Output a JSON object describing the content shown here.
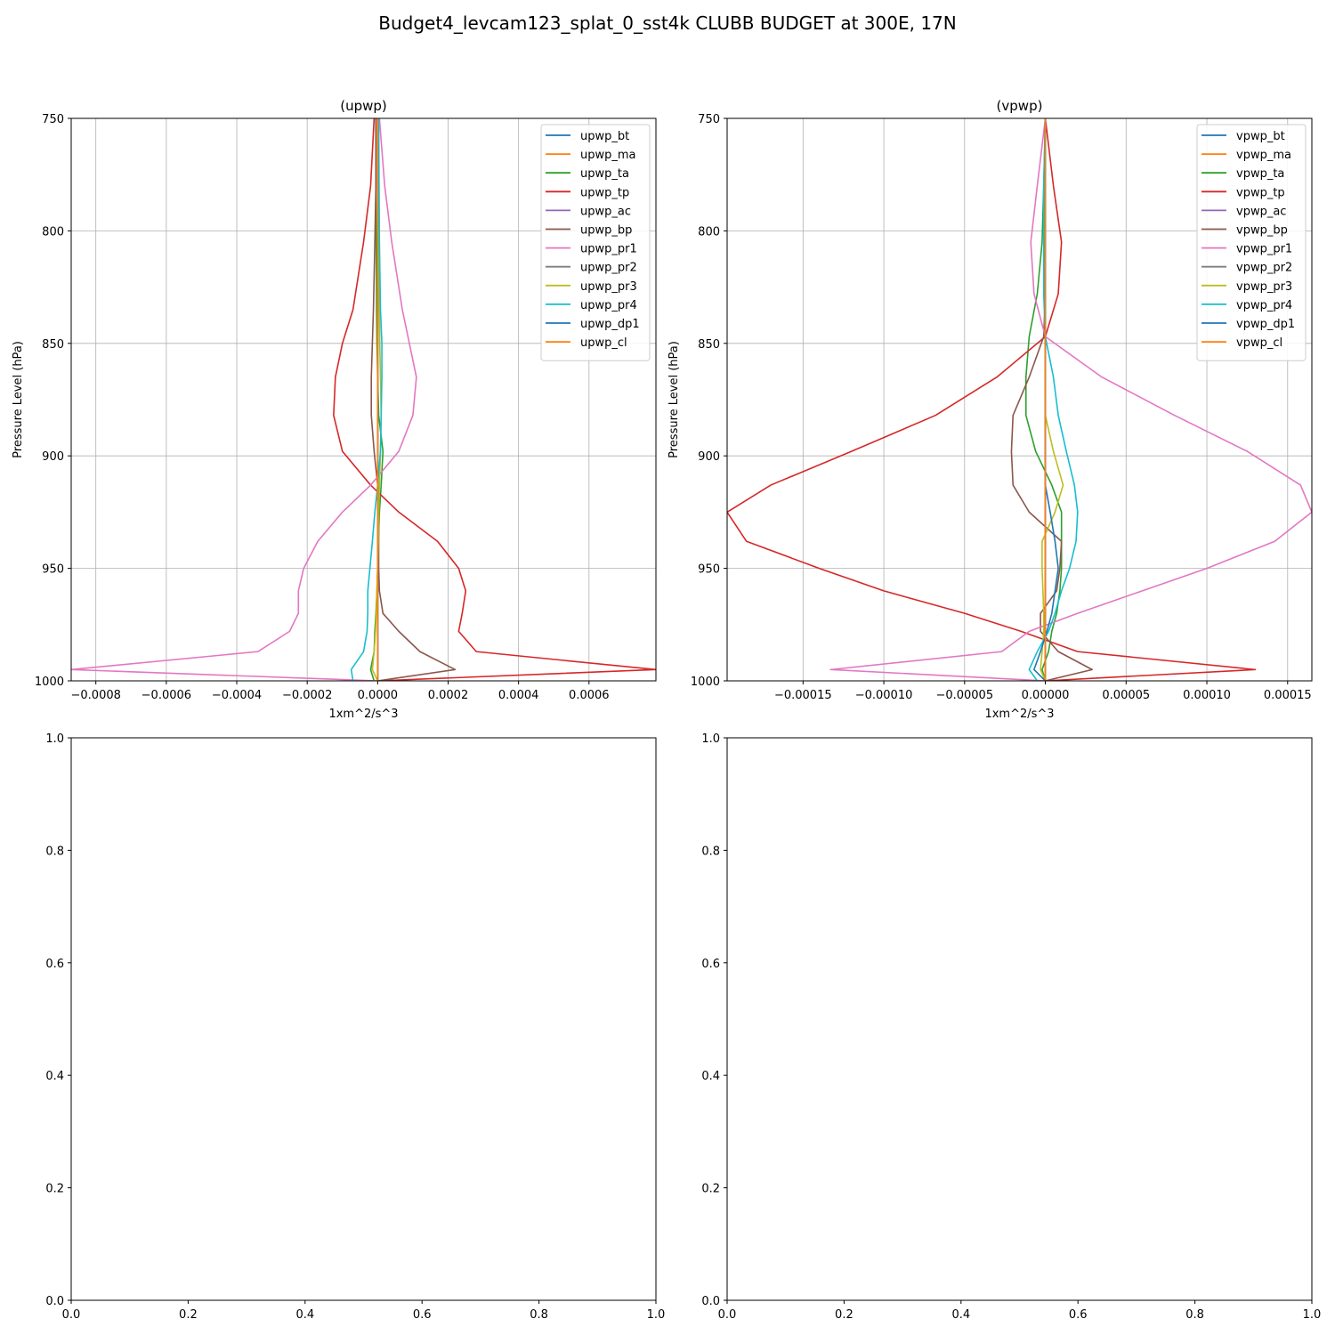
{
  "title": "Budget4_levcam123_splat_0_sst4k CLUBB BUDGET at 300E, 17N",
  "chart_data": [
    {
      "type": "line",
      "title": "(upwp)",
      "xlabel": "1xm^2/s^3",
      "ylabel": "Pressure Level (hPa)",
      "xlim": [
        -0.00087,
        0.00079
      ],
      "ylim": [
        1000,
        750
      ],
      "y_inverted": true,
      "grid": true,
      "legend_position": "top-right",
      "xticks": [
        -0.0008,
        -0.0006,
        -0.0004,
        -0.0002,
        0.0,
        0.0002,
        0.0004,
        0.0006
      ],
      "xtick_labels": [
        "−0.0008",
        "−0.0006",
        "−0.0004",
        "−0.0002",
        "0.0000",
        "0.0002",
        "0.0004",
        "0.0006"
      ],
      "yticks": [
        750,
        800,
        850,
        900,
        950,
        1000
      ],
      "ytick_labels": [
        "750",
        "800",
        "850",
        "900",
        "950",
        "1000"
      ],
      "levels": [
        750,
        780,
        805,
        835,
        850,
        865,
        882,
        898,
        913,
        925,
        938,
        950,
        960,
        970,
        978,
        987,
        995,
        1000
      ],
      "series": [
        {
          "name": "upwp_bt",
          "color": "#1f77b4",
          "values": [
            0,
            0,
            0,
            0,
            0,
            0,
            0,
            0,
            0,
            0,
            0,
            0,
            0,
            0,
            0,
            0,
            0,
            0
          ]
        },
        {
          "name": "upwp_ma",
          "color": "#ff7f0e",
          "values": [
            0,
            0,
            0,
            0,
            0,
            0,
            0,
            0,
            0,
            0,
            0,
            0,
            0,
            0,
            0,
            0,
            0,
            0
          ]
        },
        {
          "name": "upwp_ta",
          "color": "#2ca02c",
          "values": [
            -5e-06,
            -5e-06,
            -4e-06,
            -3e-06,
            -2e-06,
            0,
            3e-06,
            1.5e-05,
            1e-05,
            5e-06,
            2e-06,
            0,
            -2e-06,
            -5e-06,
            -8e-06,
            -1e-05,
            -2e-05,
            -1e-05
          ]
        },
        {
          "name": "upwp_tp",
          "color": "#d62728",
          "values": [
            -1e-05,
            -2e-05,
            -4e-05,
            -7e-05,
            -0.0001,
            -0.00012,
            -0.000125,
            -0.0001,
            -2e-05,
            6e-05,
            0.00017,
            0.00023,
            0.00025,
            0.00024,
            0.00023,
            0.00028,
            0.00079,
            0
          ]
        },
        {
          "name": "upwp_ac",
          "color": "#9467bd",
          "values": [
            0,
            0,
            0,
            0,
            0,
            0,
            0,
            0,
            0,
            0,
            0,
            0,
            0,
            0,
            0,
            0,
            0,
            0
          ]
        },
        {
          "name": "upwp_bp",
          "color": "#8c564b",
          "values": [
            -5e-06,
            -5e-06,
            -8e-06,
            -1.2e-05,
            -1.5e-05,
            -1.8e-05,
            -1.8e-05,
            -1e-05,
            0,
            3e-06,
            3e-06,
            3e-06,
            5e-06,
            1.5e-05,
            6e-05,
            0.00012,
            0.00022,
            0
          ]
        },
        {
          "name": "upwp_pr1",
          "color": "#e377c2",
          "values": [
            5e-06,
            2e-05,
            4e-05,
            7e-05,
            9e-05,
            0.00011,
            0.0001,
            6e-05,
            -2e-05,
            -0.0001,
            -0.00017,
            -0.00021,
            -0.000225,
            -0.000225,
            -0.00025,
            -0.00034,
            -0.00087,
            0
          ]
        },
        {
          "name": "upwp_pr2",
          "color": "#7f7f7f",
          "values": [
            0,
            0,
            0,
            0,
            0,
            0,
            0,
            0,
            0,
            0,
            0,
            0,
            0,
            0,
            0,
            0,
            0,
            0
          ]
        },
        {
          "name": "upwp_pr3",
          "color": "#bcbd22",
          "values": [
            2e-06,
            3e-06,
            4e-06,
            5e-06,
            6e-06,
            8e-06,
            1e-05,
            8e-06,
            5e-06,
            3e-06,
            2e-06,
            0,
            -2e-06,
            -4e-06,
            -6e-06,
            -1e-05,
            -1.5e-05,
            0
          ]
        },
        {
          "name": "upwp_pr4",
          "color": "#17becf",
          "values": [
            3e-06,
            4e-06,
            5e-06,
            8e-06,
            1.2e-05,
            1.2e-05,
            1e-05,
            8e-06,
            0,
            -8e-06,
            -1.5e-05,
            -2.2e-05,
            -2.8e-05,
            -2.8e-05,
            -3e-05,
            -4e-05,
            -7.5e-05,
            -7e-05
          ]
        },
        {
          "name": "upwp_dp1",
          "color": "#1f77b4",
          "values": [
            0,
            0,
            0,
            0,
            0,
            0,
            0,
            0,
            0,
            0,
            0,
            0,
            0,
            0,
            0,
            0,
            0,
            0
          ]
        },
        {
          "name": "upwp_cl",
          "color": "#ff7f0e",
          "values": [
            0,
            0,
            0,
            0,
            0,
            0,
            0,
            0,
            0,
            0,
            0,
            0,
            0,
            0,
            0,
            0,
            0,
            0
          ]
        }
      ]
    },
    {
      "type": "line",
      "title": "(vpwp)",
      "xlabel": "1xm^2/s^3",
      "ylabel": "Pressure Level (hPa)",
      "xlim": [
        -0.000197,
        0.000165
      ],
      "ylim": [
        1000,
        750
      ],
      "y_inverted": true,
      "grid": true,
      "legend_position": "top-right",
      "xticks": [
        -0.00015,
        -0.0001,
        -5e-05,
        0.0,
        5e-05,
        0.0001,
        0.00015
      ],
      "xtick_labels": [
        "−0.00015",
        "−0.00010",
        "−0.00005",
        "0.00000",
        "0.00005",
        "0.00010",
        "0.00015"
      ],
      "yticks": [
        750,
        800,
        850,
        900,
        950,
        1000
      ],
      "ytick_labels": [
        "750",
        "800",
        "850",
        "900",
        "950",
        "1000"
      ],
      "levels": [
        750,
        780,
        805,
        828,
        847,
        865,
        882,
        898,
        913,
        925,
        938,
        950,
        960,
        970,
        978,
        987,
        995,
        1000
      ],
      "series": [
        {
          "name": "vpwp_bt",
          "color": "#1f77b4",
          "values": [
            0,
            0,
            0,
            0,
            0,
            0,
            0,
            0,
            0,
            0,
            0,
            0,
            0,
            0,
            0,
            0,
            0,
            0
          ]
        },
        {
          "name": "vpwp_ma",
          "color": "#ff7f0e",
          "values": [
            0,
            0,
            0,
            0,
            0,
            0,
            0,
            0,
            0,
            0,
            0,
            0,
            0,
            0,
            0,
            0,
            0,
            0
          ]
        },
        {
          "name": "vpwp_ta",
          "color": "#2ca02c",
          "values": [
            0,
            -1e-06,
            -2e-06,
            -5e-06,
            -1e-05,
            -1.2e-05,
            -1.2e-05,
            -6e-06,
            4e-06,
            1e-05,
            1e-05,
            1e-05,
            9e-06,
            7e-06,
            4e-06,
            2e-06,
            -2e-06,
            0
          ]
        },
        {
          "name": "vpwp_tp",
          "color": "#d62728",
          "values": [
            0,
            5e-06,
            1e-05,
            8e-06,
            0,
            -3e-05,
            -6.8e-05,
            -0.00012,
            -0.00017,
            -0.000197,
            -0.000185,
            -0.00014,
            -0.0001,
            -5e-05,
            -1.5e-05,
            2e-05,
            0.00013,
            0
          ]
        },
        {
          "name": "vpwp_ac",
          "color": "#9467bd",
          "values": [
            0,
            0,
            0,
            0,
            0,
            0,
            0,
            0,
            0,
            0,
            0,
            0,
            0,
            0,
            0,
            0,
            0,
            0
          ]
        },
        {
          "name": "vpwp_bp",
          "color": "#8c564b",
          "values": [
            0,
            0,
            0,
            0,
            -1e-06,
            -1e-05,
            -2e-05,
            -2.1e-05,
            -2e-05,
            -1e-05,
            1e-05,
            9e-06,
            7e-06,
            -3e-06,
            -3e-06,
            8e-06,
            2.9e-05,
            0
          ]
        },
        {
          "name": "vpwp_pr1",
          "color": "#e377c2",
          "values": [
            0,
            -5e-06,
            -9e-06,
            -7e-06,
            0,
            3.5e-05,
            8e-05,
            0.000125,
            0.000158,
            0.000165,
            0.000142,
            0.0001,
            6e-05,
            2e-05,
            -1e-05,
            -2.7e-05,
            -0.000133,
            0
          ]
        },
        {
          "name": "vpwp_pr2",
          "color": "#7f7f7f",
          "values": [
            0,
            0,
            0,
            0,
            0,
            0,
            0,
            0,
            0,
            0,
            0,
            0,
            0,
            0,
            0,
            0,
            0,
            0
          ]
        },
        {
          "name": "vpwp_pr3",
          "color": "#bcbd22",
          "values": [
            0,
            0,
            0,
            0,
            0,
            0,
            0,
            5e-06,
            1.1e-05,
            6e-06,
            -2e-06,
            -2e-06,
            -1.5e-06,
            -1e-06,
            -1e-06,
            -2e-06,
            -3e-06,
            0
          ]
        },
        {
          "name": "vpwp_pr4",
          "color": "#17becf",
          "values": [
            0,
            -1e-06,
            -1e-06,
            -1e-06,
            0,
            5e-06,
            8e-06,
            1.3e-05,
            1.8e-05,
            2e-05,
            1.9e-05,
            1.5e-05,
            1e-05,
            6e-06,
            2e-06,
            -5e-06,
            -1e-05,
            -5e-06
          ]
        },
        {
          "name": "vpwp_dp1",
          "color": "#1f77b4",
          "values": [
            0,
            0,
            0,
            0,
            0,
            0,
            0,
            0,
            0,
            3e-06,
            6e-06,
            8e-06,
            6e-06,
            4e-06,
            1e-06,
            -3e-06,
            -7e-06,
            0
          ]
        },
        {
          "name": "vpwp_cl",
          "color": "#ff7f0e",
          "values": [
            0,
            0,
            0,
            0,
            0,
            0,
            0,
            0,
            0,
            0,
            0,
            0,
            0,
            0,
            0,
            0,
            0,
            0
          ]
        }
      ]
    },
    {
      "type": "line",
      "title": "",
      "empty": true,
      "xlim": [
        0,
        1
      ],
      "ylim": [
        0,
        1
      ],
      "xticks": [
        0,
        0.2,
        0.4,
        0.6,
        0.8,
        1.0
      ],
      "xtick_labels": [
        "0.0",
        "0.2",
        "0.4",
        "0.6",
        "0.8",
        "1.0"
      ],
      "yticks": [
        0,
        0.2,
        0.4,
        0.6,
        0.8,
        1.0
      ],
      "ytick_labels": [
        "0.0",
        "0.2",
        "0.4",
        "0.6",
        "0.8",
        "1.0"
      ],
      "series": []
    },
    {
      "type": "line",
      "title": "",
      "empty": true,
      "xlim": [
        0,
        1
      ],
      "ylim": [
        0,
        1
      ],
      "xticks": [
        0,
        0.2,
        0.4,
        0.6,
        0.8,
        1.0
      ],
      "xtick_labels": [
        "0.0",
        "0.2",
        "0.4",
        "0.6",
        "0.8",
        "1.0"
      ],
      "yticks": [
        0,
        0.2,
        0.4,
        0.6,
        0.8,
        1.0
      ],
      "ytick_labels": [
        "0.0",
        "0.2",
        "0.4",
        "0.6",
        "0.8",
        "1.0"
      ],
      "series": []
    }
  ]
}
